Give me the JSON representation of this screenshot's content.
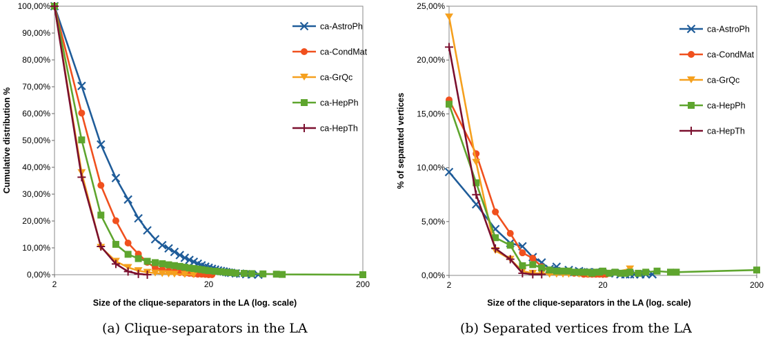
{
  "figure": {
    "caption_a": "(a) Clique-separators in the LA",
    "caption_b": "(b) Separated vertices from the LA"
  },
  "chart_data": [
    {
      "type": "line",
      "ylabel": "Cumulative distribution %",
      "xlabel": "Size of the clique-separators in the LA (log. scale)",
      "x_scale": "log",
      "xlim": [
        2,
        200
      ],
      "ylim": [
        0,
        100
      ],
      "x_ticks": [
        2,
        20,
        200
      ],
      "y_ticks": [
        "0,00%",
        "10,00%",
        "20,00%",
        "30,00%",
        "40,00%",
        "50,00%",
        "60,00%",
        "70,00%",
        "80,00%",
        "90,00%",
        "100,00%"
      ],
      "legend_position": "top-right",
      "series": [
        {
          "name": "ca-AstroPh",
          "color": "#1f5c99",
          "marker": "x",
          "x": [
            2,
            3,
            4,
            5,
            6,
            7,
            8,
            9,
            10,
            11,
            12,
            13,
            14,
            15,
            16,
            17,
            18,
            19,
            20,
            21,
            22,
            23,
            24,
            25,
            26,
            27,
            28,
            30,
            32,
            35,
            38,
            42
          ],
          "y": [
            100,
            70.3,
            48.5,
            36,
            28,
            21,
            16.5,
            13.2,
            11,
            9.8,
            8.5,
            7.3,
            6.3,
            5.5,
            4.8,
            4.1,
            3.5,
            3,
            2.6,
            2.2,
            1.9,
            1.6,
            1.4,
            1.2,
            1,
            0.8,
            0.7,
            0.5,
            0.4,
            0.2,
            0.1,
            0
          ]
        },
        {
          "name": "ca-CondMat",
          "color": "#f0501e",
          "marker": "circle",
          "x": [
            2,
            3,
            4,
            5,
            6,
            7,
            8,
            9,
            10,
            11,
            12,
            13,
            14,
            15,
            16,
            17,
            18,
            19,
            20,
            21
          ],
          "y": [
            100,
            60.2,
            33.3,
            20.1,
            11.8,
            7.7,
            4.6,
            2.6,
            1.9,
            1.4,
            1.1,
            0.8,
            0.6,
            0.5,
            0.3,
            0.2,
            0.2,
            0.1,
            0,
            0
          ]
        },
        {
          "name": "ca-GrQc",
          "color": "#f5a01e",
          "marker": "triangle-down",
          "x": [
            2,
            3,
            4,
            5,
            6,
            7,
            8,
            9,
            10,
            11,
            12,
            14,
            16
          ],
          "y": [
            100,
            38,
            10.2,
            5,
            2.7,
            1.5,
            0.9,
            0.6,
            0.4,
            0.3,
            0.2,
            0.1,
            0
          ]
        },
        {
          "name": "ca-HepPh",
          "color": "#5ea52e",
          "marker": "square",
          "x": [
            2,
            3,
            4,
            5,
            6,
            7,
            8,
            9,
            10,
            11,
            12,
            13,
            14,
            15,
            16,
            17,
            18,
            19,
            20,
            22,
            24,
            26,
            28,
            30,
            34,
            38,
            45,
            55,
            60,
            200
          ],
          "y": [
            100,
            50.2,
            22.2,
            11.3,
            7.6,
            6,
            5,
            4.5,
            4.1,
            3.7,
            3.4,
            3.1,
            2.8,
            2.5,
            2.3,
            2.1,
            1.9,
            1.7,
            1.5,
            1.3,
            1.1,
            0.9,
            0.8,
            0.6,
            0.5,
            0.4,
            0.3,
            0.2,
            0.1,
            0
          ]
        },
        {
          "name": "ca-HepTh",
          "color": "#7a0f2e",
          "marker": "plus",
          "x": [
            2,
            3,
            4,
            5,
            6,
            7,
            8
          ],
          "y": [
            100,
            36.3,
            10.5,
            4,
            1.2,
            0.3,
            0
          ]
        }
      ]
    },
    {
      "type": "line",
      "ylabel": "% of separated vertices",
      "xlabel": "Size of the clique-separators in the LA (log. scale)",
      "x_scale": "log",
      "xlim": [
        2,
        200
      ],
      "ylim": [
        0,
        25
      ],
      "x_ticks": [
        2,
        20,
        200
      ],
      "y_ticks": [
        "0,00%",
        "5,00%",
        "10,00%",
        "15,00%",
        "20,00%",
        "25,00%"
      ],
      "legend_position": "top-right",
      "series": [
        {
          "name": "ca-AstroPh",
          "color": "#1f5c99",
          "marker": "x",
          "x": [
            2,
            3,
            4,
            5,
            6,
            7,
            8,
            9,
            10,
            11,
            12,
            13,
            14,
            15,
            16,
            17,
            18,
            20,
            22,
            24,
            26,
            28,
            30,
            32,
            35,
            38,
            42
          ],
          "y": [
            9.6,
            6.6,
            4.3,
            3,
            2.7,
            1.7,
            1.2,
            0.6,
            0.8,
            0.4,
            0.5,
            0.3,
            0.4,
            0.3,
            0.3,
            0.2,
            0.3,
            0.2,
            0.2,
            0.2,
            0.1,
            0.1,
            0.1,
            0.1,
            0.1,
            0.1,
            0.1
          ]
        },
        {
          "name": "ca-CondMat",
          "color": "#f0501e",
          "marker": "circle",
          "x": [
            2,
            3,
            4,
            5,
            6,
            7,
            8,
            9,
            10,
            11,
            12,
            13,
            14,
            15,
            16,
            17,
            18,
            19,
            20,
            21
          ],
          "y": [
            16.3,
            11.3,
            5.9,
            3.9,
            2.1,
            1.6,
            0.8,
            0.5,
            0.4,
            0.3,
            0.3,
            0.2,
            0.2,
            0.1,
            0.1,
            0.1,
            0.1,
            0.1,
            0.1,
            0.1
          ]
        },
        {
          "name": "ca-GrQc",
          "color": "#f5a01e",
          "marker": "triangle-down",
          "x": [
            2,
            3,
            4,
            5,
            6,
            7,
            8,
            9,
            10,
            11,
            12,
            14,
            16,
            22,
            30
          ],
          "y": [
            24,
            10.5,
            2.3,
            1.5,
            0.4,
            0.2,
            0.2,
            0.1,
            0.1,
            0.1,
            0.1,
            0.1,
            0.1,
            0.2,
            0.6
          ]
        },
        {
          "name": "ca-HepPh",
          "color": "#5ea52e",
          "marker": "square",
          "x": [
            2,
            3,
            4,
            5,
            6,
            7,
            8,
            9,
            10,
            11,
            12,
            13,
            14,
            15,
            16,
            17,
            18,
            19,
            20,
            22,
            24,
            26,
            28,
            30,
            34,
            38,
            45,
            55,
            60,
            200
          ],
          "y": [
            15.9,
            8.6,
            3.5,
            2.8,
            0.9,
            1,
            0.7,
            0.5,
            0.4,
            0.4,
            0.4,
            0.3,
            0.3,
            0.3,
            0.3,
            0.2,
            0.3,
            0.3,
            0.4,
            0.2,
            0.3,
            0.2,
            0.2,
            0.3,
            0.2,
            0.3,
            0.4,
            0.3,
            0.3,
            0.5
          ]
        },
        {
          "name": "ca-HepTh",
          "color": "#7a0f2e",
          "marker": "plus",
          "x": [
            2,
            3,
            4,
            5,
            6,
            7,
            8
          ],
          "y": [
            21.2,
            7.5,
            2.5,
            1.5,
            0.2,
            0.1,
            0.1
          ]
        }
      ]
    }
  ]
}
